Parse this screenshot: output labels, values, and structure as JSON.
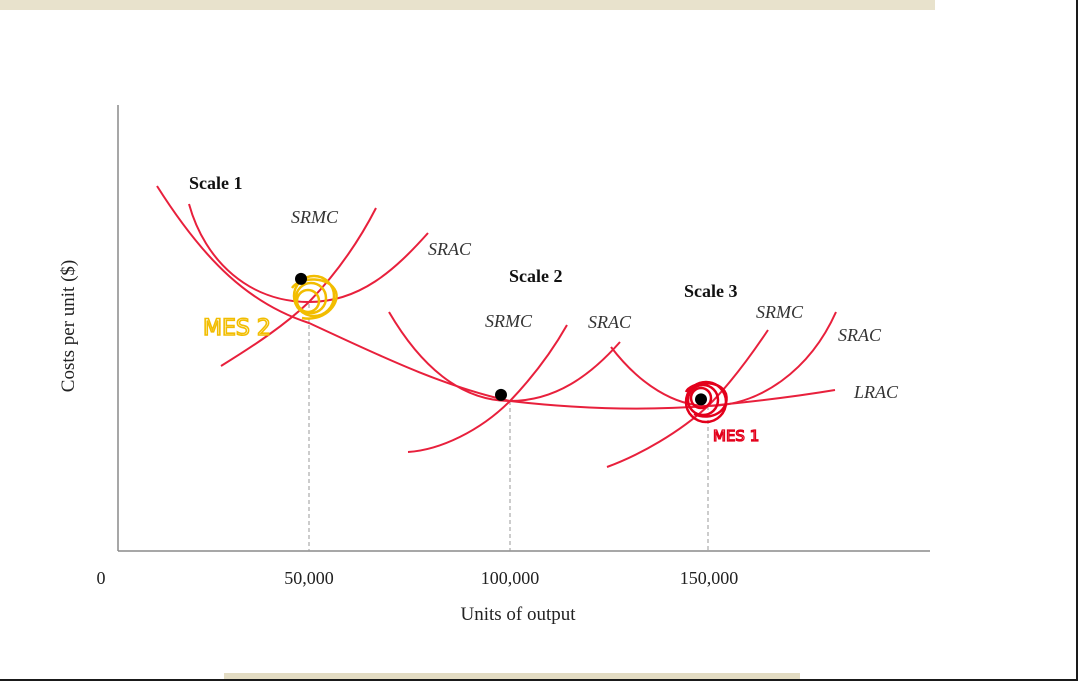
{
  "chart_data": {
    "type": "line",
    "xlabel": "Units of output",
    "ylabel": "Costs per unit ($)",
    "x_ticks": [
      "0",
      "50,000",
      "100,000",
      "150,000"
    ],
    "x_tick_values": [
      0,
      50000,
      100000,
      150000
    ],
    "xlim": [
      0,
      205000
    ],
    "ylim": [
      0,
      10
    ],
    "grid": false,
    "scales": [
      {
        "name": "Scale 1",
        "srmc_label": "SRMC",
        "srac_label": "SRAC",
        "min_point": {
          "x": 50000,
          "y": 6.1
        }
      },
      {
        "name": "Scale 2",
        "srmc_label": "SRMC",
        "srac_label": "SRAC",
        "min_point": {
          "x": 100000,
          "y": 3.5
        }
      },
      {
        "name": "Scale 3",
        "srmc_label": "SRMC",
        "srac_label": "SRAC",
        "min_point": {
          "x": 150000,
          "y": 3.4
        }
      }
    ],
    "lrac_label": "LRAC",
    "curve_color": "#e8203c",
    "annotations": [
      {
        "text": "MES 2",
        "color": "#f2bd00",
        "at_x": 50000
      },
      {
        "text": "MES 1",
        "color": "#e3001b",
        "at_x": 150000
      }
    ]
  }
}
